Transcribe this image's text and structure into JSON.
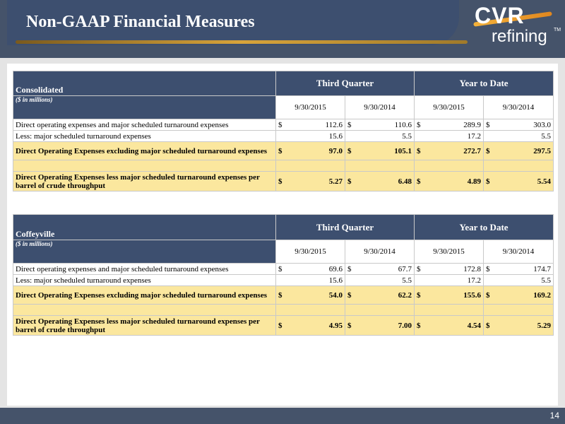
{
  "header": {
    "title": "Non-GAAP Financial Measures"
  },
  "logo": {
    "main": "CVR",
    "sub": "refining",
    "tm": "TM"
  },
  "tables": [
    {
      "section": "Consolidated",
      "unit": "($ in millions)",
      "groups": [
        "Third Quarter",
        "Year to Date"
      ],
      "dates": [
        "9/30/2015",
        "9/30/2014",
        "9/30/2015",
        "9/30/2014"
      ],
      "rows": [
        {
          "label": "Direct operating expenses and major scheduled turnaround expenses",
          "style": "white",
          "dollar": true,
          "values": [
            "112.6",
            "110.6",
            "289.9",
            "303.0"
          ]
        },
        {
          "label": "Less: major scheduled turnaround expenses",
          "style": "white",
          "dollar": false,
          "values": [
            "15.6",
            "5.5",
            "17.2",
            "5.5"
          ]
        },
        {
          "label": "Direct Operating Expenses excluding major scheduled turnaround expenses",
          "style": "yellow-bold",
          "dollar": true,
          "values": [
            "97.0",
            "105.1",
            "272.7",
            "297.5"
          ]
        },
        {
          "label": "",
          "style": "yellow-blank",
          "dollar": false,
          "values": [
            "",
            "",
            "",
            ""
          ]
        },
        {
          "label": "Direct Operating Expenses less major scheduled turnaround expenses per barrel of crude throughput",
          "style": "yellow-bold",
          "dollar": true,
          "values": [
            "5.27",
            "6.48",
            "4.89",
            "5.54"
          ]
        }
      ]
    },
    {
      "section": "Coffeyville",
      "unit": "($ in millions)",
      "groups": [
        "Third Quarter",
        "Year to Date"
      ],
      "dates": [
        "9/30/2015",
        "9/30/2014",
        "9/30/2015",
        "9/30/2014"
      ],
      "rows": [
        {
          "label": "Direct operating expenses and major scheduled turnaround expenses",
          "style": "white",
          "dollar": true,
          "values": [
            "69.6",
            "67.7",
            "172.8",
            "174.7"
          ]
        },
        {
          "label": "Less: major scheduled turnaround expenses",
          "style": "white",
          "dollar": false,
          "values": [
            "15.6",
            "5.5",
            "17.2",
            "5.5"
          ]
        },
        {
          "label": "Direct Operating Expenses excluding major scheduled turnaround expenses",
          "style": "yellow-bold",
          "dollar": true,
          "values": [
            "54.0",
            "62.2",
            "155.6",
            "169.2"
          ]
        },
        {
          "label": "",
          "style": "yellow-blank",
          "dollar": false,
          "values": [
            "",
            "",
            "",
            ""
          ]
        },
        {
          "label": "Direct Operating Expenses less major scheduled turnaround expenses per barrel of crude throughput",
          "style": "yellow-bold",
          "dollar": true,
          "values": [
            "4.95",
            "7.00",
            "4.54",
            "5.29"
          ]
        }
      ]
    }
  ],
  "currency_symbol": "$",
  "footer": {
    "page_number": "14"
  }
}
